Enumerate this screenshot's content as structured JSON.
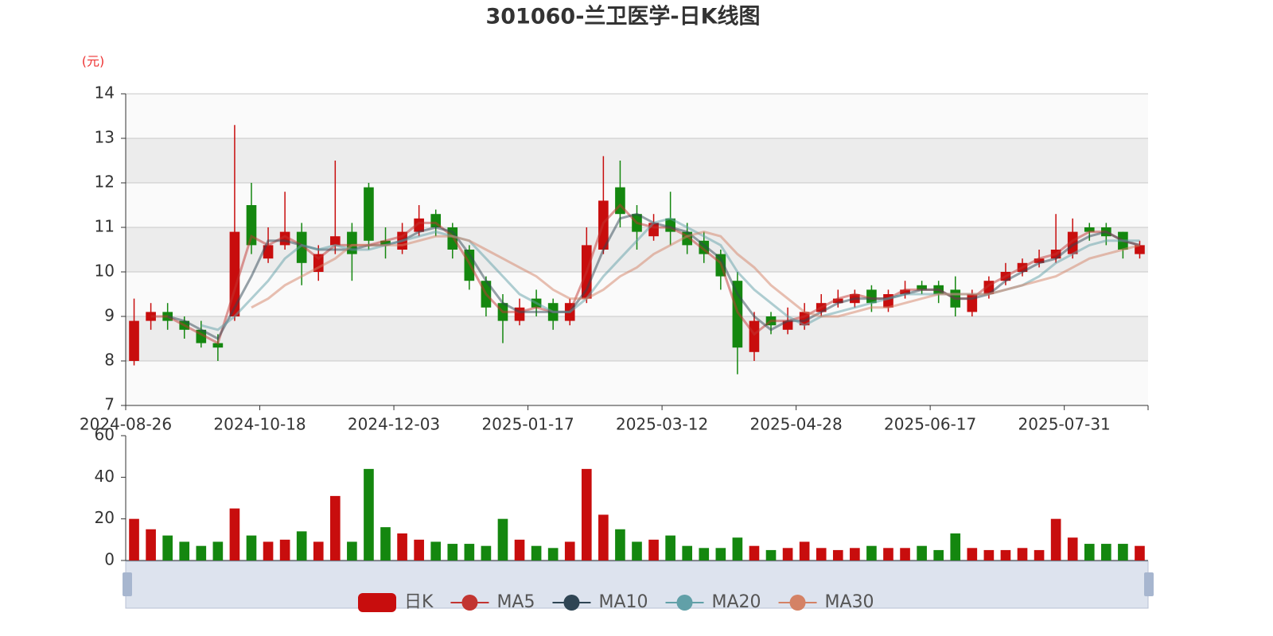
{
  "chart_data": {
    "type": "candlestick",
    "title": "301060-兰卫医学-日K线图",
    "y_unit": "(元)",
    "categories": [
      "2024-08-26",
      null,
      null,
      null,
      null,
      null,
      null,
      null,
      "2024-10-18",
      null,
      null,
      null,
      null,
      null,
      null,
      null,
      "2024-12-03",
      null,
      null,
      null,
      null,
      null,
      null,
      null,
      "2025-01-17",
      null,
      null,
      null,
      null,
      null,
      null,
      null,
      "2025-03-12",
      null,
      null,
      null,
      null,
      null,
      null,
      null,
      "2025-04-28",
      null,
      null,
      null,
      null,
      null,
      null,
      null,
      "2025-06-17",
      null,
      null,
      null,
      null,
      null,
      null,
      null,
      "2025-07-31",
      null,
      null,
      null,
      null
    ],
    "ylim": [
      7,
      14
    ],
    "yticks": [
      7,
      8,
      9,
      10,
      11,
      12,
      13,
      14
    ],
    "up_color": "#c80d0d",
    "down_color": "#14870f",
    "candles": {
      "name": "日K",
      "color": "#c80d0d",
      "values": [
        [
          8.0,
          8.9,
          7.9,
          9.4
        ],
        [
          8.9,
          9.1,
          8.7,
          9.3
        ],
        [
          9.1,
          8.9,
          8.7,
          9.3
        ],
        [
          8.9,
          8.7,
          8.5,
          9.0
        ],
        [
          8.7,
          8.4,
          8.3,
          8.9
        ],
        [
          8.4,
          8.3,
          8.0,
          8.6
        ],
        [
          9.0,
          10.9,
          8.9,
          13.3
        ],
        [
          11.5,
          10.6,
          10.4,
          12.0
        ],
        [
          10.3,
          10.6,
          10.2,
          11.0
        ],
        [
          10.6,
          10.9,
          10.5,
          11.8
        ],
        [
          10.9,
          10.2,
          9.7,
          11.1
        ],
        [
          10.0,
          10.4,
          9.8,
          10.6
        ],
        [
          10.6,
          10.8,
          10.4,
          12.5
        ],
        [
          10.9,
          10.4,
          9.8,
          11.1
        ],
        [
          11.9,
          10.7,
          10.5,
          12.0
        ],
        [
          10.7,
          10.6,
          10.3,
          11.0
        ],
        [
          10.5,
          10.9,
          10.4,
          11.1
        ],
        [
          10.9,
          11.2,
          10.8,
          11.5
        ],
        [
          11.3,
          11.0,
          10.8,
          11.4
        ],
        [
          11.0,
          10.5,
          10.3,
          11.1
        ],
        [
          10.5,
          9.8,
          9.6,
          10.6
        ],
        [
          9.8,
          9.2,
          9.0,
          9.9
        ],
        [
          9.3,
          8.9,
          8.4,
          9.5
        ],
        [
          8.9,
          9.2,
          8.8,
          9.4
        ],
        [
          9.4,
          9.2,
          9.0,
          9.6
        ],
        [
          9.3,
          8.9,
          8.7,
          9.4
        ],
        [
          8.9,
          9.3,
          8.8,
          9.4
        ],
        [
          9.4,
          10.6,
          9.3,
          11.0
        ],
        [
          10.5,
          11.6,
          10.4,
          12.6
        ],
        [
          11.9,
          11.3,
          11.0,
          12.5
        ],
        [
          11.3,
          10.9,
          10.5,
          11.5
        ],
        [
          10.8,
          11.1,
          10.7,
          11.3
        ],
        [
          11.2,
          10.9,
          10.6,
          11.8
        ],
        [
          10.9,
          10.6,
          10.4,
          11.1
        ],
        [
          10.7,
          10.4,
          10.2,
          10.9
        ],
        [
          10.4,
          9.9,
          9.6,
          10.5
        ],
        [
          9.8,
          8.3,
          7.7,
          10.0
        ],
        [
          8.2,
          8.9,
          8.0,
          9.1
        ],
        [
          9.0,
          8.8,
          8.6,
          9.1
        ],
        [
          8.7,
          8.9,
          8.6,
          9.2
        ],
        [
          8.8,
          9.1,
          8.7,
          9.3
        ],
        [
          9.1,
          9.3,
          9.0,
          9.5
        ],
        [
          9.3,
          9.4,
          9.2,
          9.6
        ],
        [
          9.3,
          9.5,
          9.2,
          9.6
        ],
        [
          9.6,
          9.3,
          9.1,
          9.7
        ],
        [
          9.2,
          9.5,
          9.1,
          9.6
        ],
        [
          9.5,
          9.6,
          9.4,
          9.8
        ],
        [
          9.7,
          9.6,
          9.5,
          9.8
        ],
        [
          9.7,
          9.5,
          9.3,
          9.8
        ],
        [
          9.6,
          9.2,
          9.0,
          9.9
        ],
        [
          9.1,
          9.5,
          9.0,
          9.6
        ],
        [
          9.5,
          9.8,
          9.4,
          9.9
        ],
        [
          9.8,
          10.0,
          9.7,
          10.2
        ],
        [
          10.0,
          10.2,
          9.9,
          10.3
        ],
        [
          10.2,
          10.3,
          10.1,
          10.5
        ],
        [
          10.3,
          10.5,
          10.2,
          11.3
        ],
        [
          10.4,
          10.9,
          10.3,
          11.2
        ],
        [
          11.0,
          10.9,
          10.7,
          11.1
        ],
        [
          11.0,
          10.8,
          10.6,
          11.1
        ],
        [
          10.9,
          10.5,
          10.3,
          10.9
        ],
        [
          10.4,
          10.6,
          10.3,
          10.7
        ]
      ]
    },
    "series": [
      {
        "name": "MA5",
        "color": "#c23531",
        "values": [
          null,
          9.0,
          9.0,
          8.8,
          8.6,
          8.4,
          9.6,
          10.8,
          10.6,
          10.8,
          10.6,
          10.3,
          10.6,
          10.6,
          10.6,
          10.7,
          10.8,
          11.1,
          11.1,
          10.8,
          10.2,
          9.5,
          9.1,
          9.1,
          9.2,
          9.1,
          9.1,
          10.0,
          11.1,
          11.5,
          11.1,
          11.0,
          11.0,
          10.8,
          10.5,
          10.2,
          9.1,
          8.6,
          8.9,
          8.9,
          9.0,
          9.2,
          9.4,
          9.5,
          9.4,
          9.4,
          9.6,
          9.6,
          9.6,
          9.4,
          9.4,
          9.7,
          9.9,
          10.1,
          10.3,
          10.4,
          10.7,
          10.9,
          10.9,
          10.7,
          10.6
        ]
      },
      {
        "name": "MA10",
        "color": "#2f4554",
        "values": [
          null,
          null,
          9.0,
          8.9,
          8.7,
          8.5,
          9.2,
          9.9,
          10.7,
          10.7,
          10.6,
          10.5,
          10.5,
          10.5,
          10.6,
          10.6,
          10.7,
          10.9,
          11.0,
          10.9,
          10.4,
          9.8,
          9.3,
          9.1,
          9.1,
          9.1,
          9.1,
          9.6,
          10.5,
          11.2,
          11.3,
          11.1,
          11.0,
          10.9,
          10.6,
          10.3,
          9.5,
          9.0,
          8.7,
          8.9,
          8.9,
          9.1,
          9.3,
          9.4,
          9.4,
          9.4,
          9.5,
          9.6,
          9.6,
          9.4,
          9.4,
          9.5,
          9.8,
          10.0,
          10.2,
          10.3,
          10.6,
          10.8,
          10.9,
          10.7,
          10.6
        ]
      },
      {
        "name": "MA20",
        "color": "#61a0a8",
        "values": [
          null,
          null,
          null,
          null,
          8.8,
          8.7,
          9.0,
          9.4,
          9.8,
          10.3,
          10.6,
          10.5,
          10.6,
          10.5,
          10.5,
          10.6,
          10.7,
          10.8,
          10.9,
          10.8,
          10.7,
          10.3,
          9.9,
          9.5,
          9.3,
          9.1,
          9.1,
          9.4,
          9.9,
          10.3,
          10.7,
          11.1,
          11.2,
          11.0,
          10.8,
          10.6,
          10.0,
          9.6,
          9.3,
          9.0,
          8.8,
          9.0,
          9.1,
          9.2,
          9.3,
          9.4,
          9.5,
          9.5,
          9.5,
          9.5,
          9.5,
          9.5,
          9.6,
          9.7,
          9.9,
          10.2,
          10.4,
          10.6,
          10.7,
          10.7,
          10.7
        ]
      },
      {
        "name": "MA30",
        "color": "#d48265",
        "values": [
          null,
          null,
          null,
          null,
          null,
          null,
          null,
          9.2,
          9.4,
          9.7,
          9.9,
          10.1,
          10.3,
          10.6,
          10.6,
          10.6,
          10.6,
          10.7,
          10.8,
          10.8,
          10.7,
          10.5,
          10.3,
          10.1,
          9.9,
          9.6,
          9.4,
          9.4,
          9.6,
          9.9,
          10.1,
          10.4,
          10.6,
          10.8,
          10.9,
          10.8,
          10.4,
          10.1,
          9.7,
          9.4,
          9.1,
          9.0,
          9.0,
          9.1,
          9.2,
          9.2,
          9.3,
          9.4,
          9.5,
          9.5,
          9.5,
          9.5,
          9.6,
          9.7,
          9.8,
          9.9,
          10.1,
          10.3,
          10.4,
          10.5,
          10.6
        ]
      }
    ],
    "volume": {
      "ylim": [
        0,
        60
      ],
      "yticks": [
        0,
        20,
        40,
        60
      ],
      "values": [
        20,
        15,
        12,
        9,
        7,
        9,
        25,
        12,
        9,
        10,
        14,
        9,
        31,
        9,
        44,
        16,
        13,
        10,
        9,
        8,
        8,
        7,
        20,
        10,
        7,
        6,
        9,
        44,
        22,
        15,
        9,
        10,
        12,
        7,
        6,
        6,
        11,
        7,
        5,
        6,
        9,
        6,
        5,
        6,
        7,
        6,
        6,
        7,
        5,
        13,
        6,
        5,
        5,
        6,
        5,
        20,
        11,
        8,
        8,
        8,
        7
      ]
    },
    "grid": true
  }
}
